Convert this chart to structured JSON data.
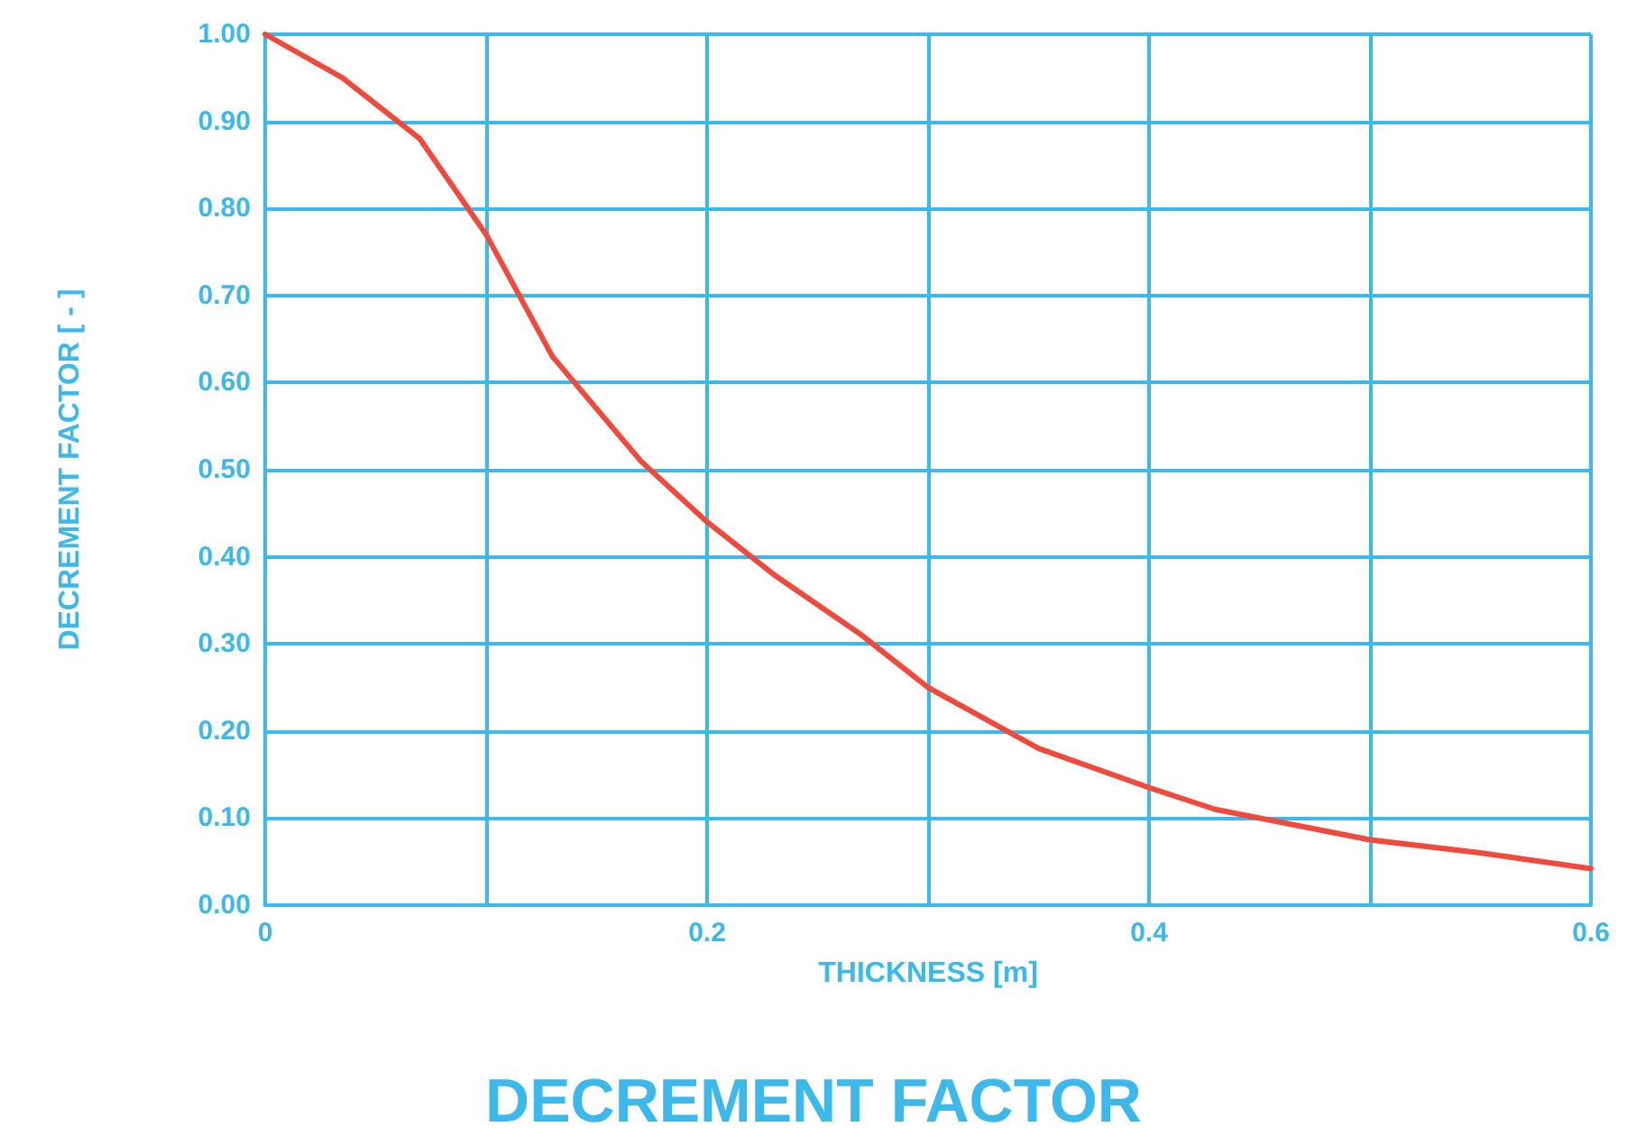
{
  "chart_data": {
    "type": "line",
    "title": "DECREMENT FACTOR",
    "xlabel": "THICKNESS [m]",
    "ylabel": "DECREMENT FACTOR [ - ]",
    "x": [
      0,
      0.035,
      0.07,
      0.1,
      0.13,
      0.17,
      0.2,
      0.23,
      0.27,
      0.3,
      0.35,
      0.4,
      0.43,
      0.5,
      0.55,
      0.6
    ],
    "series": [
      {
        "color": "#f04a3c",
        "values": [
          1.0,
          0.95,
          0.88,
          0.77,
          0.63,
          0.51,
          0.44,
          0.38,
          0.31,
          0.25,
          0.18,
          0.135,
          0.11,
          0.075,
          0.06,
          0.042
        ]
      }
    ],
    "xlim": [
      0,
      0.6
    ],
    "xticks": [
      0,
      {
        "value": 0.1,
        "label": null
      },
      0.2,
      {
        "value": 0.3,
        "label": null
      },
      0.4,
      {
        "value": 0.5,
        "label": null
      },
      0.6
    ],
    "ylim": [
      0,
      1
    ],
    "yticks": [
      {
        "value": 0,
        "label": "0.00"
      },
      {
        "value": 0.1,
        "label": "0.10"
      },
      {
        "value": 0.2,
        "label": "0.20"
      },
      {
        "value": 0.3,
        "label": "0.30"
      },
      {
        "value": 0.4,
        "label": "0.40"
      },
      {
        "value": 0.5,
        "label": "0.50"
      },
      {
        "value": 0.6,
        "label": "0.60"
      },
      {
        "value": 0.7,
        "label": "0.70"
      },
      {
        "value": 0.8,
        "label": "0.80"
      },
      {
        "value": 0.9,
        "label": "0.90"
      },
      {
        "value": 1,
        "label": "1.00"
      }
    ],
    "grid": true,
    "marker": "none",
    "line_style": "solid"
  }
}
